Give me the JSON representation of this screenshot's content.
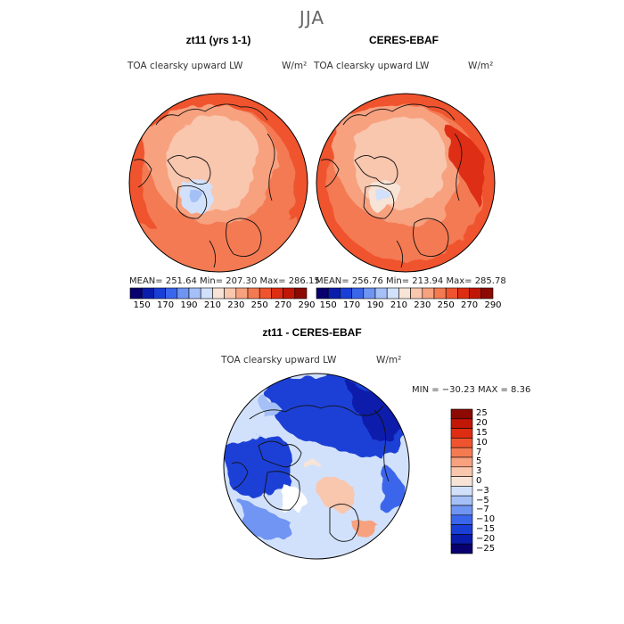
{
  "season": "JJA",
  "panels": [
    {
      "title": "zt11 (yrs 1-1)",
      "variable": "TOA clearsky upward LW",
      "units": "W/m²",
      "stats": {
        "mean": "251.64",
        "min": "207.30",
        "max": "286.15"
      },
      "stats_text": "MEAN= 251.64   Min= 207.30   Max= 286.15"
    },
    {
      "title": "CERES-EBAF",
      "variable": "TOA clearsky upward LW",
      "units": "W/m²",
      "stats": {
        "mean": "256.76",
        "min": "213.94",
        "max": "285.78"
      },
      "stats_text": "MEAN= 256.76   Min= 213.94   Max= 285.78"
    }
  ],
  "abs_colorbar": {
    "ticks": [
      "150",
      "170",
      "190",
      "210",
      "230",
      "250",
      "270",
      "290"
    ],
    "colors": [
      "#08006e",
      "#0a1cab",
      "#1a3fd6",
      "#3a66ec",
      "#6f95f3",
      "#a5c0f7",
      "#d2e1fb",
      "#f7e4d6",
      "#f9c6ae",
      "#f7a17f",
      "#f47a52",
      "#ef542e",
      "#de2d12",
      "#c11706",
      "#8c0a02"
    ]
  },
  "diff_panel": {
    "title": "zt11 - CERES-EBAF",
    "variable": "TOA clearsky upward LW",
    "units": "W/m²",
    "min_max_text": "MIN = −30.23 MAX =    8.36",
    "levels": [
      "25",
      "20",
      "15",
      "10",
      "7",
      "5",
      "3",
      "0",
      "−3",
      "−5",
      "−7",
      "−10",
      "−15",
      "−20",
      "−25"
    ],
    "colors": [
      "#8c0a02",
      "#c11706",
      "#de2d12",
      "#ef542e",
      "#f47a52",
      "#f7a17f",
      "#f9c6ae",
      "#f7e4d6",
      "#d2e1fb",
      "#a5c0f7",
      "#6f95f3",
      "#3a66ec",
      "#1a3fd6",
      "#0a1cab",
      "#08006e"
    ]
  }
}
